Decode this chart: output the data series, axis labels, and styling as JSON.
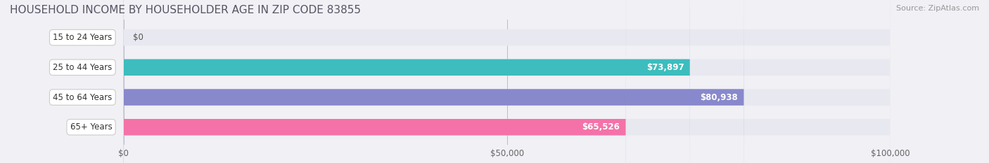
{
  "title": "HOUSEHOLD INCOME BY HOUSEHOLDER AGE IN ZIP CODE 83855",
  "source": "Source: ZipAtlas.com",
  "categories": [
    "15 to 24 Years",
    "25 to 44 Years",
    "45 to 64 Years",
    "65+ Years"
  ],
  "values": [
    0,
    73897,
    80938,
    65526
  ],
  "labels": [
    "$0",
    "$73,897",
    "$80,938",
    "$65,526"
  ],
  "bar_colors": [
    "#d8b4d8",
    "#3dbdbd",
    "#8888cc",
    "#f472a8"
  ],
  "bar_edge_colors": [
    "#c090c0",
    "#2aa0a0",
    "#7070bb",
    "#f05090"
  ],
  "xlim": [
    0,
    100000
  ],
  "xticks": [
    0,
    50000,
    100000
  ],
  "xticklabels": [
    "$0",
    "$50,000",
    "$100,000"
  ],
  "bar_height": 0.55,
  "background_color": "#f0f0f5",
  "bar_bg_color": "#e8e8f0",
  "title_fontsize": 11,
  "source_fontsize": 8,
  "label_fontsize": 8.5,
  "tick_fontsize": 8.5,
  "category_fontsize": 8.5
}
